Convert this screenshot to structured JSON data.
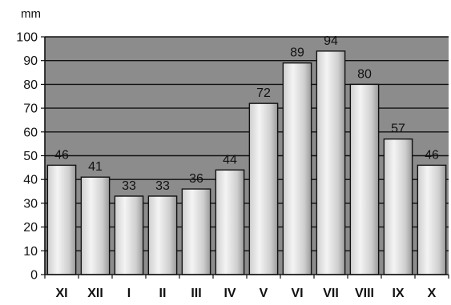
{
  "chart_data": {
    "type": "bar",
    "title": "",
    "xlabel": "",
    "ylabel": "mm",
    "categories": [
      "XI",
      "XII",
      "I",
      "II",
      "III",
      "IV",
      "V",
      "VI",
      "VII",
      "VIII",
      "IX",
      "X"
    ],
    "values": [
      46,
      41,
      33,
      33,
      36,
      44,
      72,
      89,
      94,
      80,
      57,
      46
    ],
    "ylim": [
      0,
      100
    ],
    "yticks": [
      0,
      10,
      20,
      30,
      40,
      50,
      60,
      70,
      80,
      90,
      100
    ],
    "grid": true,
    "legend": "none",
    "colors": {
      "plot_background": "#8c8c8c",
      "gridline": "#111111",
      "bar_light": "#f4f4f4",
      "bar_mid": "#cfcfcf",
      "bar_dark": "#9a9a9a",
      "bar_outline": "#111111"
    }
  }
}
